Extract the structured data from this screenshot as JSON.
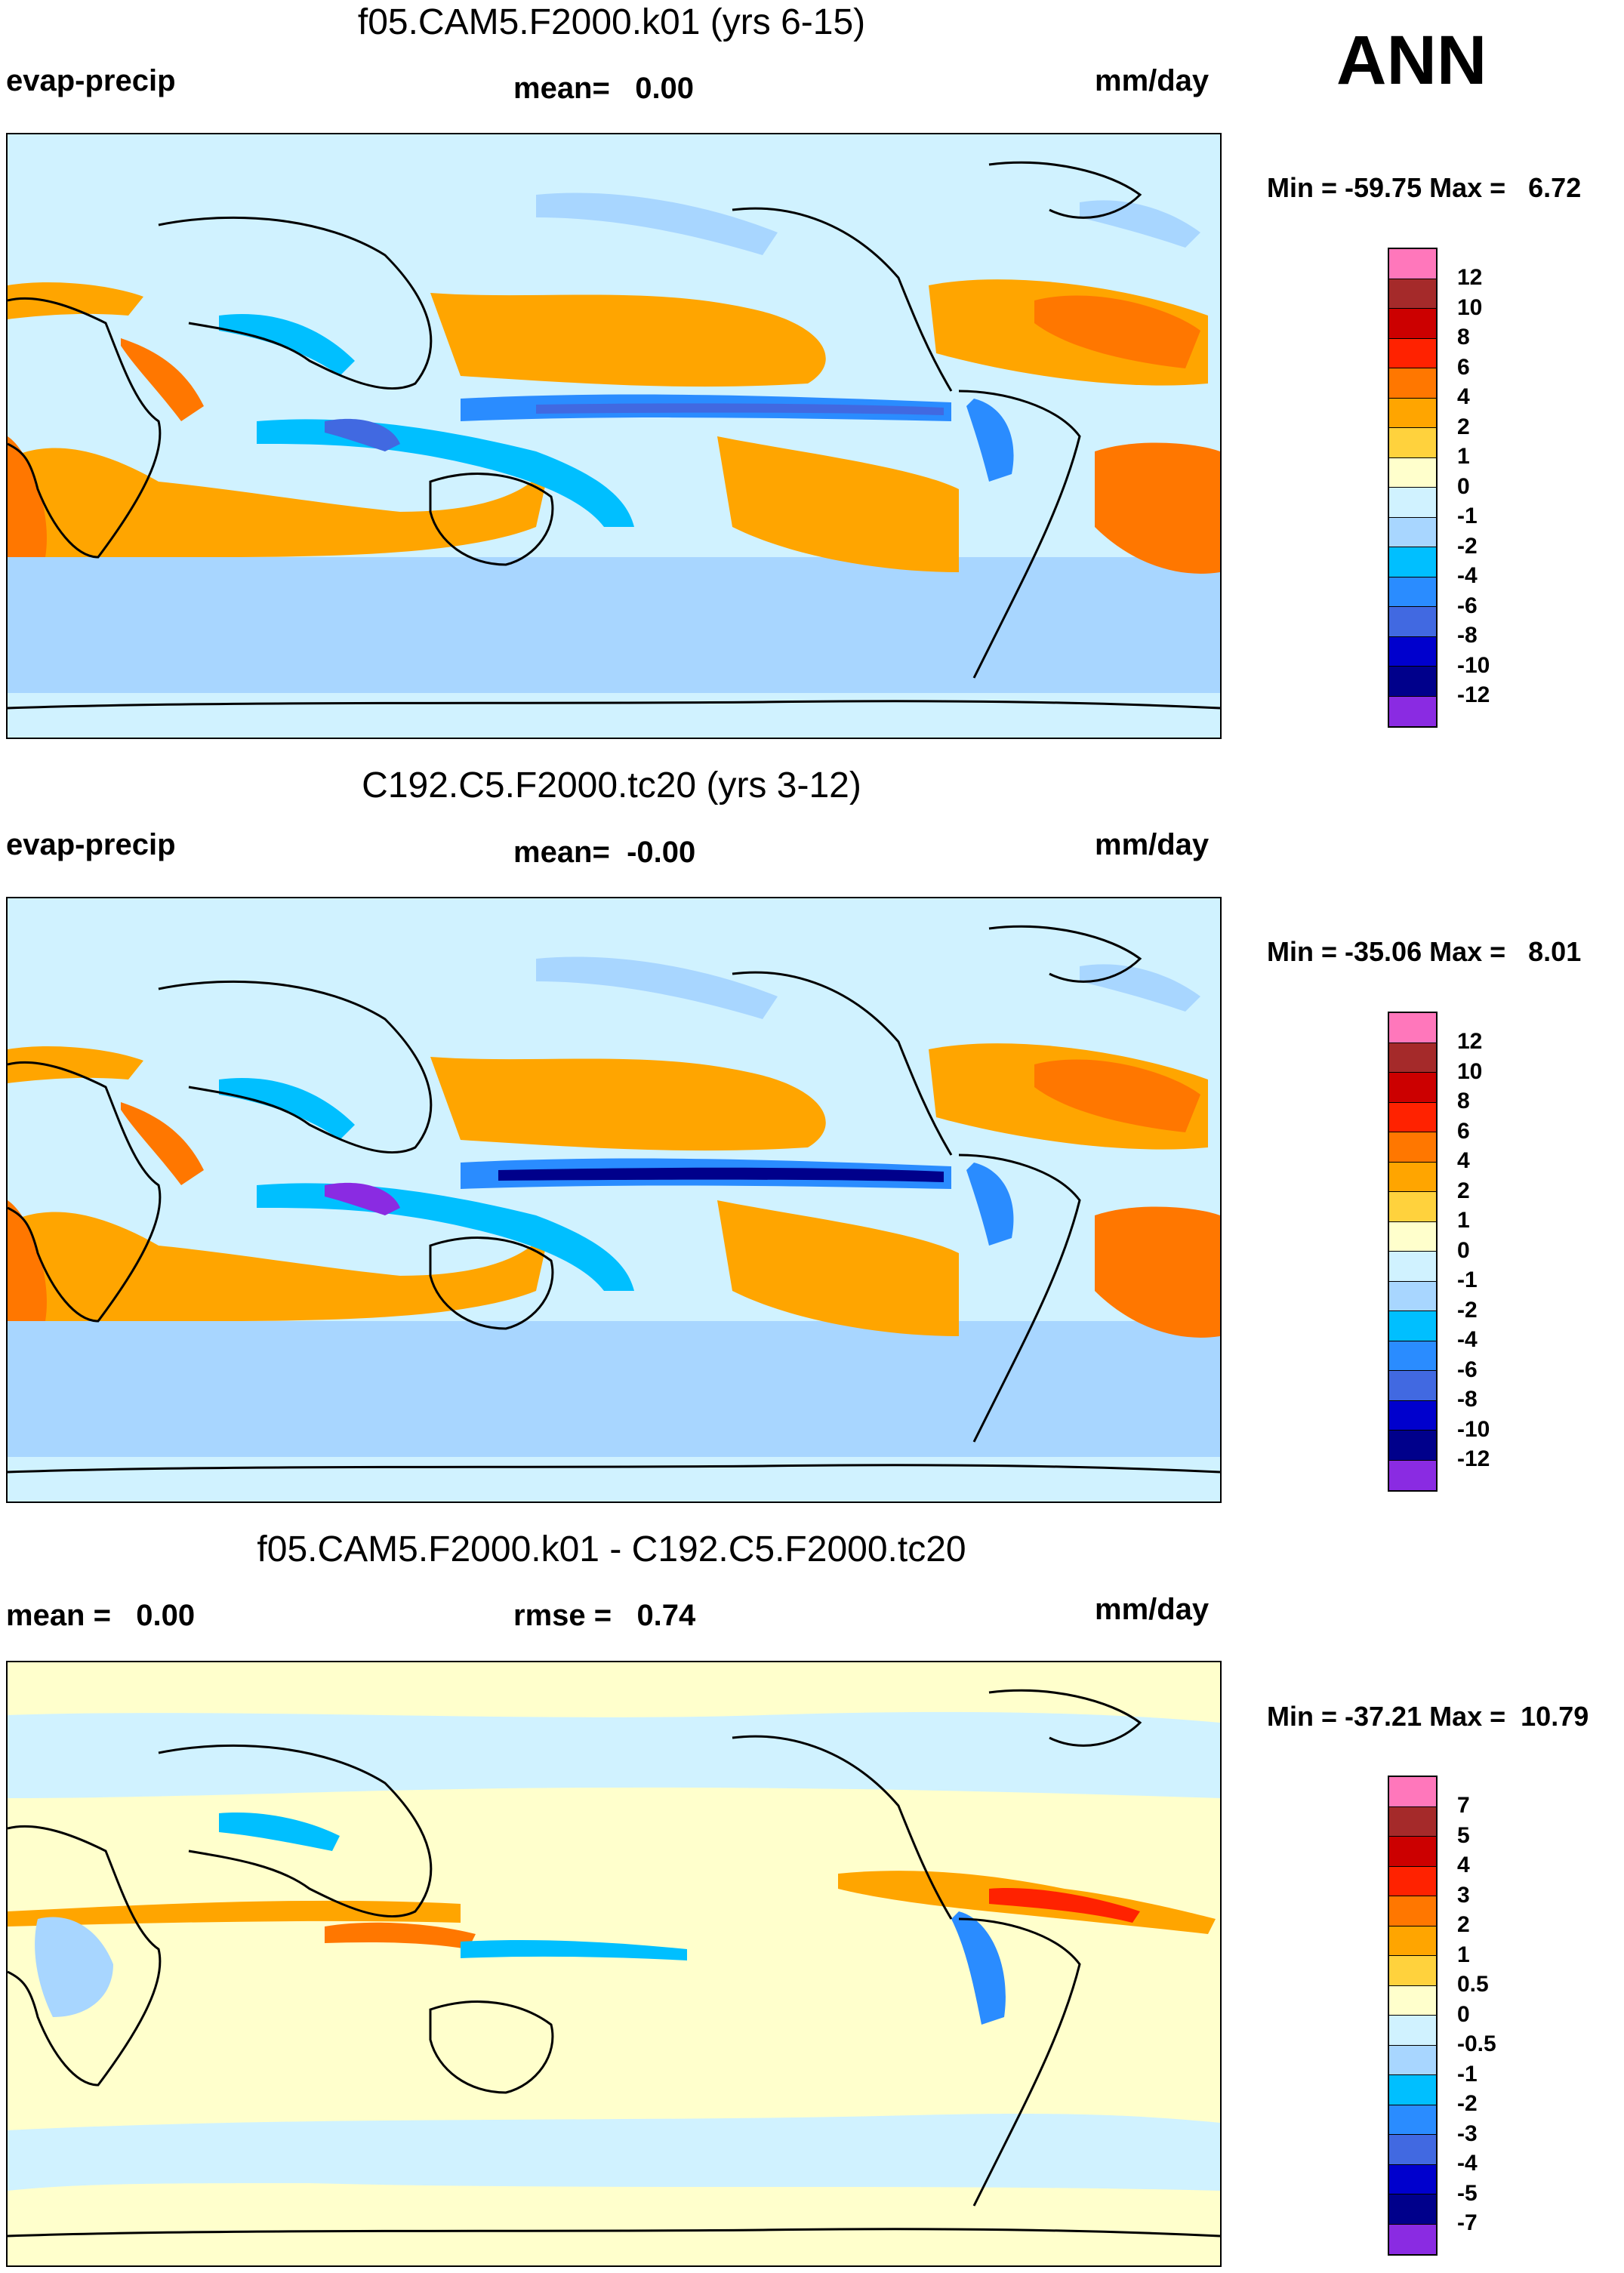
{
  "corner_label": "ANN",
  "panels": [
    {
      "title": "f05.CAM5.F2000.k01 (yrs 6-15)",
      "left_label": "evap-precip",
      "center_label": "mean=   0.00",
      "units": "mm/day",
      "minmax": "Min = -59.75 Max =   6.72",
      "colorbar": [
        "12",
        "10",
        "8",
        "6",
        "4",
        "2",
        "1",
        "0",
        "-1",
        "-2",
        "-4",
        "-6",
        "-8",
        "-10",
        "-12"
      ],
      "colors": [
        "#ff77bb",
        "#a52a2a",
        "#cc0000",
        "#ff2200",
        "#ff7700",
        "#ffa500",
        "#ffd23d",
        "#ffffcc",
        "#d0f2ff",
        "#a8d6ff",
        "#00bfff",
        "#2a8cff",
        "#4169e1",
        "#0000cd",
        "#00008b",
        "#8a2be2"
      ]
    },
    {
      "title": "C192.C5.F2000.tc20 (yrs 3-12)",
      "left_label": "evap-precip",
      "center_label": "mean=  -0.00",
      "units": "mm/day",
      "minmax": "Min = -35.06 Max =   8.01",
      "colorbar": [
        "12",
        "10",
        "8",
        "6",
        "4",
        "2",
        "1",
        "0",
        "-1",
        "-2",
        "-4",
        "-6",
        "-8",
        "-10",
        "-12"
      ],
      "colors": [
        "#ff77bb",
        "#a52a2a",
        "#cc0000",
        "#ff2200",
        "#ff7700",
        "#ffa500",
        "#ffd23d",
        "#ffffcc",
        "#d0f2ff",
        "#a8d6ff",
        "#00bfff",
        "#2a8cff",
        "#4169e1",
        "#0000cd",
        "#00008b",
        "#8a2be2"
      ]
    },
    {
      "title": "f05.CAM5.F2000.k01 - C192.C5.F2000.tc20",
      "left_label": "mean =   0.00",
      "center_label": "rmse =   0.74",
      "units": "mm/day",
      "minmax": "Min = -37.21 Max =  10.79",
      "colorbar": [
        "7",
        "5",
        "4",
        "3",
        "2",
        "1",
        "0.5",
        "0",
        "-0.5",
        "-1",
        "-2",
        "-3",
        "-4",
        "-5",
        "-7"
      ],
      "colors": [
        "#ff77bb",
        "#a52a2a",
        "#cc0000",
        "#ff2200",
        "#ff7700",
        "#ffa500",
        "#ffd23d",
        "#ffffcc",
        "#d0f2ff",
        "#a8d6ff",
        "#00bfff",
        "#2a8cff",
        "#4169e1",
        "#0000cd",
        "#00008b",
        "#8a2be2"
      ]
    }
  ]
}
